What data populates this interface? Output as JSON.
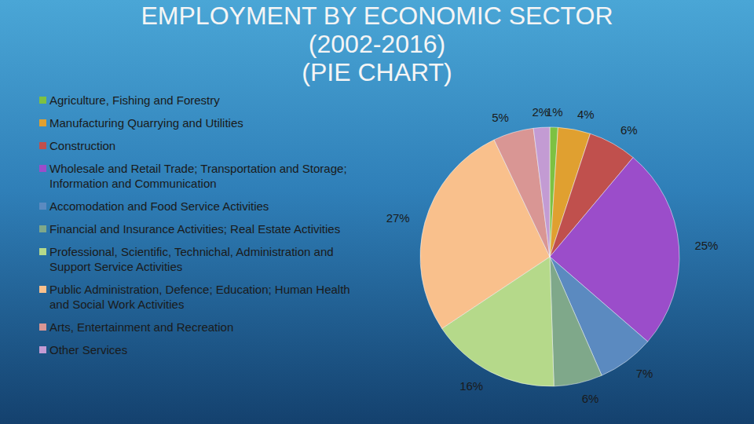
{
  "chart_data": {
    "type": "pie",
    "title": "EMPLOYMENT BY ECONOMIC SECTOR\n(2002-2016)\n(PIE CHART)",
    "categories": [
      "Agriculture, Fishing and Forestry",
      "Manufacturing Quarrying and Utilities",
      "Construction",
      "Wholesale and Retail Trade; Transportation and Storage; Information and Communication",
      "Accomodation and Food Service Activities",
      "Financial and Insurance Activities; Real Estate Activities",
      "Professional, Scientific, Technichal, Administration and Support Service Activities",
      "Public Administration, Defence; Education; Human Health and Social Work Activities",
      "Arts, Entertainment and Recreation",
      "Other Services"
    ],
    "values": [
      1,
      4,
      6,
      25,
      7,
      6,
      16,
      27,
      5,
      2
    ],
    "value_labels": [
      "1%",
      "4%",
      "6%",
      "25%",
      "7%",
      "6%",
      "16%",
      "27%",
      "5%",
      "2%"
    ],
    "colors": [
      "#7dc142",
      "#e0a030",
      "#c0504d",
      "#9b4dca",
      "#5b8ac0",
      "#7fa88a",
      "#b5d98a",
      "#f9c08c",
      "#d99694",
      "#c39bd3"
    ],
    "legend": "left",
    "data_labels": true
  }
}
